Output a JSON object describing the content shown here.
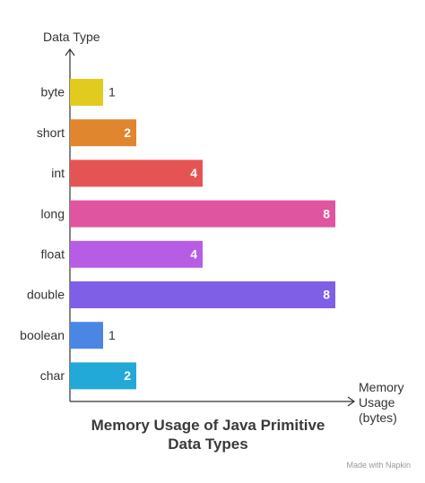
{
  "chart_data": {
    "type": "bar",
    "orientation": "horizontal",
    "title": "Memory Usage of Java Primitive Data Types",
    "x_label": "Memory Usage (bytes)",
    "y_label": "Data Type",
    "categories": [
      "byte",
      "short",
      "int",
      "long",
      "float",
      "double",
      "boolean",
      "char"
    ],
    "values": [
      1,
      2,
      4,
      8,
      4,
      8,
      1,
      2
    ],
    "colors": [
      "#e2cb1f",
      "#e0862f",
      "#e55454",
      "#e0559f",
      "#b75de5",
      "#7e5fe6",
      "#4c86e5",
      "#23a9d8"
    ],
    "xlim": [
      0,
      8
    ],
    "watermark": "Made with Napkin"
  }
}
